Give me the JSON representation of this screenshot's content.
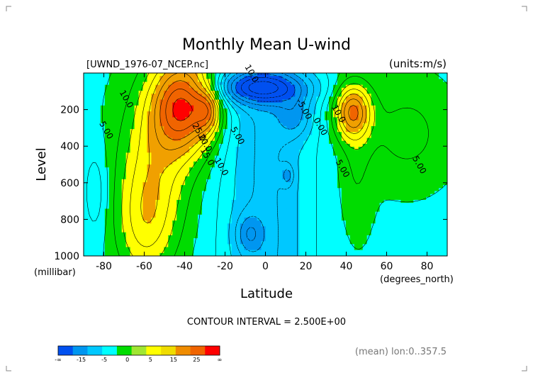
{
  "chart_data": {
    "type": "heatmap",
    "title": "Monthly Mean U-wind",
    "file_label": "[UWND_1976-07_NCEP.nc]",
    "units_label": "(units:m/s)",
    "xlabel": "Latitude",
    "x_units": "(degrees_north)",
    "ylabel": "Level",
    "y_units": "(millibar)",
    "xlim": [
      -90,
      90
    ],
    "ylim": [
      1000,
      0
    ],
    "x_ticks": [
      {
        "value": -80,
        "label": "-80"
      },
      {
        "value": -60,
        "label": "-60"
      },
      {
        "value": -40,
        "label": "-40"
      },
      {
        "value": -20,
        "label": "-20"
      },
      {
        "value": 0,
        "label": "0"
      },
      {
        "value": 20,
        "label": "20"
      },
      {
        "value": 40,
        "label": "40"
      },
      {
        "value": 60,
        "label": "60"
      },
      {
        "value": 80,
        "label": "80"
      }
    ],
    "y_ticks": [
      {
        "value": 200,
        "label": "200"
      },
      {
        "value": 400,
        "label": "400"
      },
      {
        "value": 600,
        "label": "600"
      },
      {
        "value": 800,
        "label": "800"
      },
      {
        "value": 1000,
        "label": "1000"
      }
    ],
    "contour_interval_label": "CONTOUR INTERVAL = 2.500E+00",
    "footer_label": "(mean) lon:0..357.5",
    "contour_labels": [
      {
        "text": "10.0",
        "lat": -8,
        "lev": 10
      },
      {
        "text": "10.0",
        "lat": -70,
        "lev": 150
      },
      {
        "text": "5.00",
        "lat": -80,
        "lev": 320
      },
      {
        "text": "25.0",
        "lat": -34,
        "lev": 330
      },
      {
        "text": "20.0",
        "lat": -31,
        "lev": 390
      },
      {
        "text": "15.0",
        "lat": -30,
        "lev": 465
      },
      {
        "text": "10.0",
        "lat": -23,
        "lev": 520
      },
      {
        "text": "5.00",
        "lat": -15,
        "lev": 350
      },
      {
        "text": "-5.00",
        "lat": 18,
        "lev": 205
      },
      {
        "text": "0.00",
        "lat": 26,
        "lev": 300
      },
      {
        "text": "10.0",
        "lat": 35,
        "lev": 230
      },
      {
        "text": "5.00",
        "lat": 37,
        "lev": 530
      },
      {
        "text": "5.00",
        "lat": 75,
        "lev": 510
      }
    ],
    "colorbar": {
      "colors": [
        "#0050f0",
        "#0096f0",
        "#00c8ff",
        "#00ffff",
        "#00dc00",
        "#a0e632",
        "#ffff00",
        "#f0dc00",
        "#f08c00",
        "#f06400",
        "#ff0000"
      ],
      "labels": [
        "-∞",
        "-15",
        "-5",
        "0",
        "5",
        "15",
        "25",
        "∞"
      ]
    },
    "fill_levels": [
      -10,
      -5,
      0,
      5,
      10,
      15,
      20,
      25
    ],
    "fill_colors": [
      "#0050f0",
      "#0096f0",
      "#00c8ff",
      "#00ffff",
      "#00dc00",
      "#ffff00",
      "#f0a000",
      "#f06400",
      "#ff0000"
    ]
  }
}
